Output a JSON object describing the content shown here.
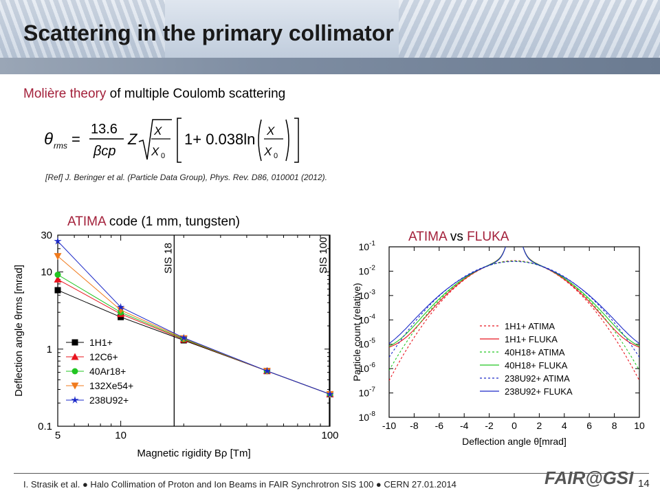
{
  "slide": {
    "title": "Scattering in the primary collimator",
    "subtitle_accent": "Molière theory",
    "subtitle_rest": " of multiple Coulomb scattering",
    "formula": {
      "theta": "θ",
      "rms": "rms",
      "eq": "=",
      "num": "13.6",
      "den": "βcp",
      "Z": "Z",
      "x": "X",
      "x0": "X",
      "zero": "0",
      "one_plus": "1+ 0.038ln"
    },
    "reference": "[Ref] J. Beringer et al. (Particle Data Group), Phys. Rev. D86, 010001 (2012).",
    "footer": "I. Strasik et al.   ●   Halo Collimation of Proton and Ion Beams in FAIR Synchrotron SIS 100   ●   CERN 27.01.2014",
    "page_number": "14",
    "logo": "FAIR@GSI"
  },
  "charts": {
    "left_title_accent": "ATIMA",
    "left_title_rest": " code (1 mm, tungsten)",
    "right_title_accent1": "ATIMA",
    "right_title_mid": " vs ",
    "right_title_accent2": "FLUKA"
  },
  "chart_data": [
    {
      "type": "line",
      "xscale": "log",
      "yscale": "log",
      "xlabel": "Magnetic rigidity Bρ [Tm]",
      "ylabel": "Deflection angle θrms [mrad]",
      "xlim": [
        5,
        100
      ],
      "ylim": [
        0.1,
        30
      ],
      "x_ticks": [
        "5",
        "10",
        "100"
      ],
      "y_ticks": [
        "0.1",
        "1",
        "10",
        "30"
      ],
      "vlines": [
        {
          "x": 18,
          "label": "SIS 18"
        },
        {
          "x": 100,
          "label": "SIS 100"
        }
      ],
      "legend_position": "left-middle",
      "series": [
        {
          "name": "1H1+",
          "color": "#000000",
          "marker": "square",
          "x": [
            5,
            10,
            20,
            50,
            100
          ],
          "y": [
            5.8,
            2.6,
            1.3,
            0.52,
            0.26
          ]
        },
        {
          "name": "12C6+",
          "color": "#e8141e",
          "marker": "triangle-up",
          "x": [
            5,
            10,
            20,
            50,
            100
          ],
          "y": [
            8.0,
            2.85,
            1.33,
            0.52,
            0.26
          ]
        },
        {
          "name": "40Ar18+",
          "color": "#22c522",
          "marker": "circle",
          "x": [
            5,
            10,
            20,
            50,
            100
          ],
          "y": [
            9.2,
            3.0,
            1.35,
            0.52,
            0.26
          ]
        },
        {
          "name": "132Xe54+",
          "color": "#f07a1c",
          "marker": "triangle-down",
          "x": [
            5,
            10,
            20,
            50,
            100
          ],
          "y": [
            16.0,
            3.2,
            1.38,
            0.52,
            0.26
          ]
        },
        {
          "name": "238U92+",
          "color": "#1a28c8",
          "marker": "star",
          "x": [
            5,
            10,
            20,
            50,
            100
          ],
          "y": [
            25.0,
            3.5,
            1.4,
            0.52,
            0.26
          ]
        }
      ]
    },
    {
      "type": "line",
      "yscale": "log",
      "xlabel": "Deflection angle θ[mrad]",
      "ylabel": "Particle count (relative)",
      "xlim": [
        -10,
        10
      ],
      "ylim": [
        1e-08,
        0.1
      ],
      "x_ticks": [
        "-10",
        "-8",
        "-6",
        "-4",
        "-2",
        "0",
        "2",
        "4",
        "6",
        "8",
        "10"
      ],
      "y_ticks": [
        "10^-1",
        "10^-2",
        "10^-3",
        "10^-4",
        "10^-5",
        "10^-6",
        "10^-7",
        "10^-8"
      ],
      "legend_position": "center-right",
      "series": [
        {
          "name": "1H1+ ATIMA",
          "color": "#e8141e",
          "dash": true,
          "peak": 0.027,
          "sigma": 2.1,
          "tail": false
        },
        {
          "name": "1H1+ FLUKA",
          "color": "#e8141e",
          "dash": false,
          "peak": 0.025,
          "sigma": 2.15,
          "tail": true
        },
        {
          "name": "40H18+ ATIMA",
          "color": "#22c522",
          "dash": true,
          "peak": 0.026,
          "sigma": 2.2,
          "tail": false
        },
        {
          "name": "40H18+ FLUKA",
          "color": "#22c522",
          "dash": false,
          "peak": 0.024,
          "sigma": 2.25,
          "tail": true
        },
        {
          "name": "238U92+ ATIMA",
          "color": "#1a28c8",
          "dash": true,
          "peak": 0.025,
          "sigma": 2.35,
          "tail": false
        },
        {
          "name": "238U92+ FLUKA",
          "color": "#1a28c8",
          "dash": false,
          "peak": 0.022,
          "sigma": 2.4,
          "tail": true
        }
      ]
    }
  ]
}
